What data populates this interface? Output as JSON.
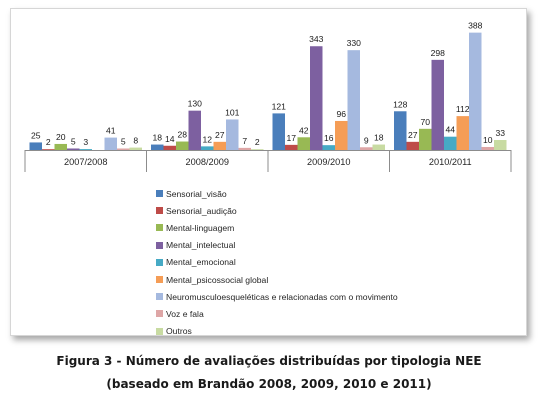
{
  "chart_data": {
    "type": "bar",
    "categories": [
      "2007/2008",
      "2008/2009",
      "2009/2010",
      "2010/2011"
    ],
    "series": [
      {
        "name": "Sensorial_visão",
        "color": "#4a7ebb",
        "values": [
          25,
          18,
          121,
          128
        ]
      },
      {
        "name": "Sensorial_audição",
        "color": "#be4b48",
        "values": [
          2,
          14,
          17,
          27
        ]
      },
      {
        "name": "Mental-linguagem",
        "color": "#98b954",
        "values": [
          20,
          28,
          42,
          70
        ]
      },
      {
        "name": "Mental_intelectual",
        "color": "#7d60a0",
        "values": [
          5,
          130,
          343,
          298
        ]
      },
      {
        "name": "Mental_emocional",
        "color": "#46aac5",
        "values": [
          3,
          12,
          16,
          44
        ]
      },
      {
        "name": "Mental_psicossocial global",
        "color": "#f59d56",
        "values": [
          null,
          27,
          96,
          112
        ]
      },
      {
        "name": "Neuromusculoesqueléticas e relacionadas com o movimento",
        "color": "#a5b9df",
        "values": [
          41,
          101,
          330,
          388
        ]
      },
      {
        "name": "Voz e fala",
        "color": "#dea6a6",
        "values": [
          5,
          7,
          9,
          10
        ]
      },
      {
        "name": "Outros",
        "color": "#c8dba2",
        "values": [
          8,
          2,
          18,
          33
        ]
      }
    ],
    "ylim": [
      0,
      400
    ],
    "grid": false,
    "legend_position": "bottom-left"
  },
  "caption": {
    "line1": "Figura 3 - Número de avaliações distribuídas por tipologia NEE",
    "line2": "(baseado em Brandão 2008, 2009, 2010 e 2011)"
  }
}
